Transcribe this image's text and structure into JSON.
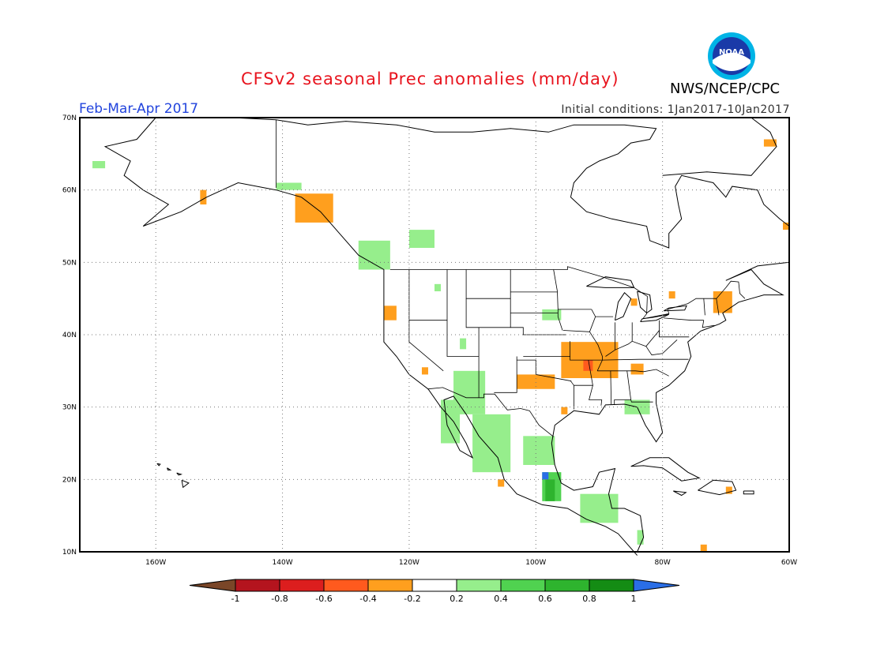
{
  "title": "CFSv2 seasonal Prec anomalies (mm/day)",
  "season": "Feb-Mar-Apr 2017",
  "initial_conditions": "Initial conditions: 1Jan2017-10Jan2017",
  "agency": "NWS/NCEP/CPC",
  "logo_text": "NOAA",
  "lat_labels": [
    "70N",
    "60N",
    "50N",
    "40N",
    "30N",
    "20N",
    "10N"
  ],
  "lon_labels": [
    "160W",
    "140W",
    "120W",
    "100W",
    "80W",
    "60W"
  ],
  "colorbar": {
    "labels": [
      "-1",
      "-0.8",
      "-0.6",
      "-0.4",
      "-0.2",
      "0.2",
      "0.4",
      "0.6",
      "0.8",
      "1"
    ],
    "colors": [
      "#7a4628",
      "#b4141e",
      "#dc1e1e",
      "#ff5a1e",
      "#ff9f1e",
      "#ffffff",
      "#96ee8c",
      "#50d250",
      "#2eb42e",
      "#148c14",
      "#2a6ee6"
    ]
  },
  "map_extent": {
    "lon_min": -172,
    "lon_max": -60,
    "lat_min": 10,
    "lat_max": 70
  },
  "anomaly_regions": [
    {
      "name": "arkansas-missouri-dry",
      "level": "-0.4",
      "lon": [
        -96,
        -87
      ],
      "lat": [
        34,
        39
      ]
    },
    {
      "name": "arkansas-dry-core",
      "level": "-0.6",
      "lon": [
        -92.5,
        -91
      ],
      "lat": [
        35,
        36.5
      ]
    },
    {
      "name": "oklahoma-dry",
      "level": "-0.4",
      "lon": [
        -103,
        -97
      ],
      "lat": [
        32.5,
        34.5
      ]
    },
    {
      "name": "tennessee-dry",
      "level": "-0.4",
      "lon": [
        -85,
        -83
      ],
      "lat": [
        34.5,
        36
      ]
    },
    {
      "name": "n-california-dry",
      "level": "-0.4",
      "lon": [
        -124,
        -122
      ],
      "lat": [
        42,
        44
      ]
    },
    {
      "name": "s-california-dry",
      "level": "-0.4",
      "lon": [
        -118,
        -117
      ],
      "lat": [
        34.5,
        35.5
      ]
    },
    {
      "name": "michigan-dry",
      "level": "-0.4",
      "lon": [
        -85,
        -84
      ],
      "lat": [
        44,
        45
      ]
    },
    {
      "name": "lake-ontario-dry",
      "level": "-0.4",
      "lon": [
        -79,
        -78
      ],
      "lat": [
        45,
        46
      ]
    },
    {
      "name": "new-england-dry",
      "level": "-0.4",
      "lon": [
        -72,
        -69
      ],
      "lat": [
        43,
        46
      ]
    },
    {
      "name": "se-alaska-dry",
      "level": "-0.4",
      "lon": [
        -138,
        -132
      ],
      "lat": [
        55.5,
        59.5
      ]
    },
    {
      "name": "sw-alaska-dry",
      "level": "-0.4",
      "lon": [
        -153,
        -152
      ],
      "lat": [
        58,
        60
      ]
    },
    {
      "name": "labrador-dry",
      "level": "-0.4",
      "lon": [
        -61,
        -60
      ],
      "lat": [
        54.5,
        55.5
      ]
    },
    {
      "name": "greenland-dry",
      "level": "-0.4",
      "lon": [
        -64,
        -62
      ],
      "lat": [
        66,
        67
      ]
    },
    {
      "name": "gulf-coast-dry",
      "level": "-0.4",
      "lon": [
        -96,
        -95
      ],
      "lat": [
        29,
        30
      ]
    },
    {
      "name": "caribbean-dry",
      "level": "-0.4",
      "lon": [
        -70,
        -69
      ],
      "lat": [
        18,
        19
      ]
    },
    {
      "name": "colombia-dry",
      "level": "-0.4",
      "lon": [
        -74,
        -73
      ],
      "lat": [
        10,
        11
      ]
    },
    {
      "name": "mexico-pacific-dry",
      "level": "-0.4",
      "lon": [
        -106,
        -105
      ],
      "lat": [
        19,
        20
      ]
    },
    {
      "name": "arizona-wet",
      "level": "0.2",
      "lon": [
        -113,
        -108
      ],
      "lat": [
        29,
        35
      ]
    },
    {
      "name": "sierra-madre-wet",
      "level": "0.2",
      "lon": [
        -110,
        -104
      ],
      "lat": [
        21,
        29
      ]
    },
    {
      "name": "baja-wet",
      "level": "0.2",
      "lon": [
        -115,
        -112
      ],
      "lat": [
        25,
        31
      ]
    },
    {
      "name": "ne-mexico-wet",
      "level": "0.2",
      "lon": [
        -102,
        -97
      ],
      "lat": [
        22,
        26
      ]
    },
    {
      "name": "veracruz-wet",
      "level": "0.4",
      "lon": [
        -99,
        -96
      ],
      "lat": [
        17,
        21
      ]
    },
    {
      "name": "veracruz-wet-core",
      "level": "0.6",
      "lon": [
        -98.5,
        -97
      ],
      "lat": [
        17,
        20
      ]
    },
    {
      "name": "veracruz-blue",
      "level": "1",
      "lon": [
        -99,
        -98
      ],
      "lat": [
        20,
        21
      ]
    },
    {
      "name": "central-america-wet",
      "level": "0.2",
      "lon": [
        -93,
        -87
      ],
      "lat": [
        14,
        18
      ]
    },
    {
      "name": "nicaragua-wet",
      "level": "0.2",
      "lon": [
        -84,
        -83
      ],
      "lat": [
        11,
        13
      ]
    },
    {
      "name": "florida-wet",
      "level": "0.2",
      "lon": [
        -86,
        -82
      ],
      "lat": [
        29,
        31
      ]
    },
    {
      "name": "bc-coast-wet",
      "level": "0.2",
      "lon": [
        -128,
        -123
      ],
      "lat": [
        49,
        53
      ]
    },
    {
      "name": "alberta-wet",
      "level": "0.2",
      "lon": [
        -120,
        -116
      ],
      "lat": [
        52,
        54.5
      ]
    },
    {
      "name": "yukon-wet",
      "level": "0.2",
      "lon": [
        -141,
        -137
      ],
      "lat": [
        60,
        61
      ]
    },
    {
      "name": "aleutian-wet",
      "level": "0.2",
      "lon": [
        -170,
        -168
      ],
      "lat": [
        63,
        64
      ]
    },
    {
      "name": "south-dakota-wet",
      "level": "0.2",
      "lon": [
        -99,
        -96
      ],
      "lat": [
        42,
        43.5
      ]
    },
    {
      "name": "utah-wet",
      "level": "0.2",
      "lon": [
        -112,
        -111
      ],
      "lat": [
        38,
        39.5
      ]
    },
    {
      "name": "montana-wet",
      "level": "0.2",
      "lon": [
        -116,
        -115
      ],
      "lat": [
        46,
        47
      ]
    }
  ]
}
